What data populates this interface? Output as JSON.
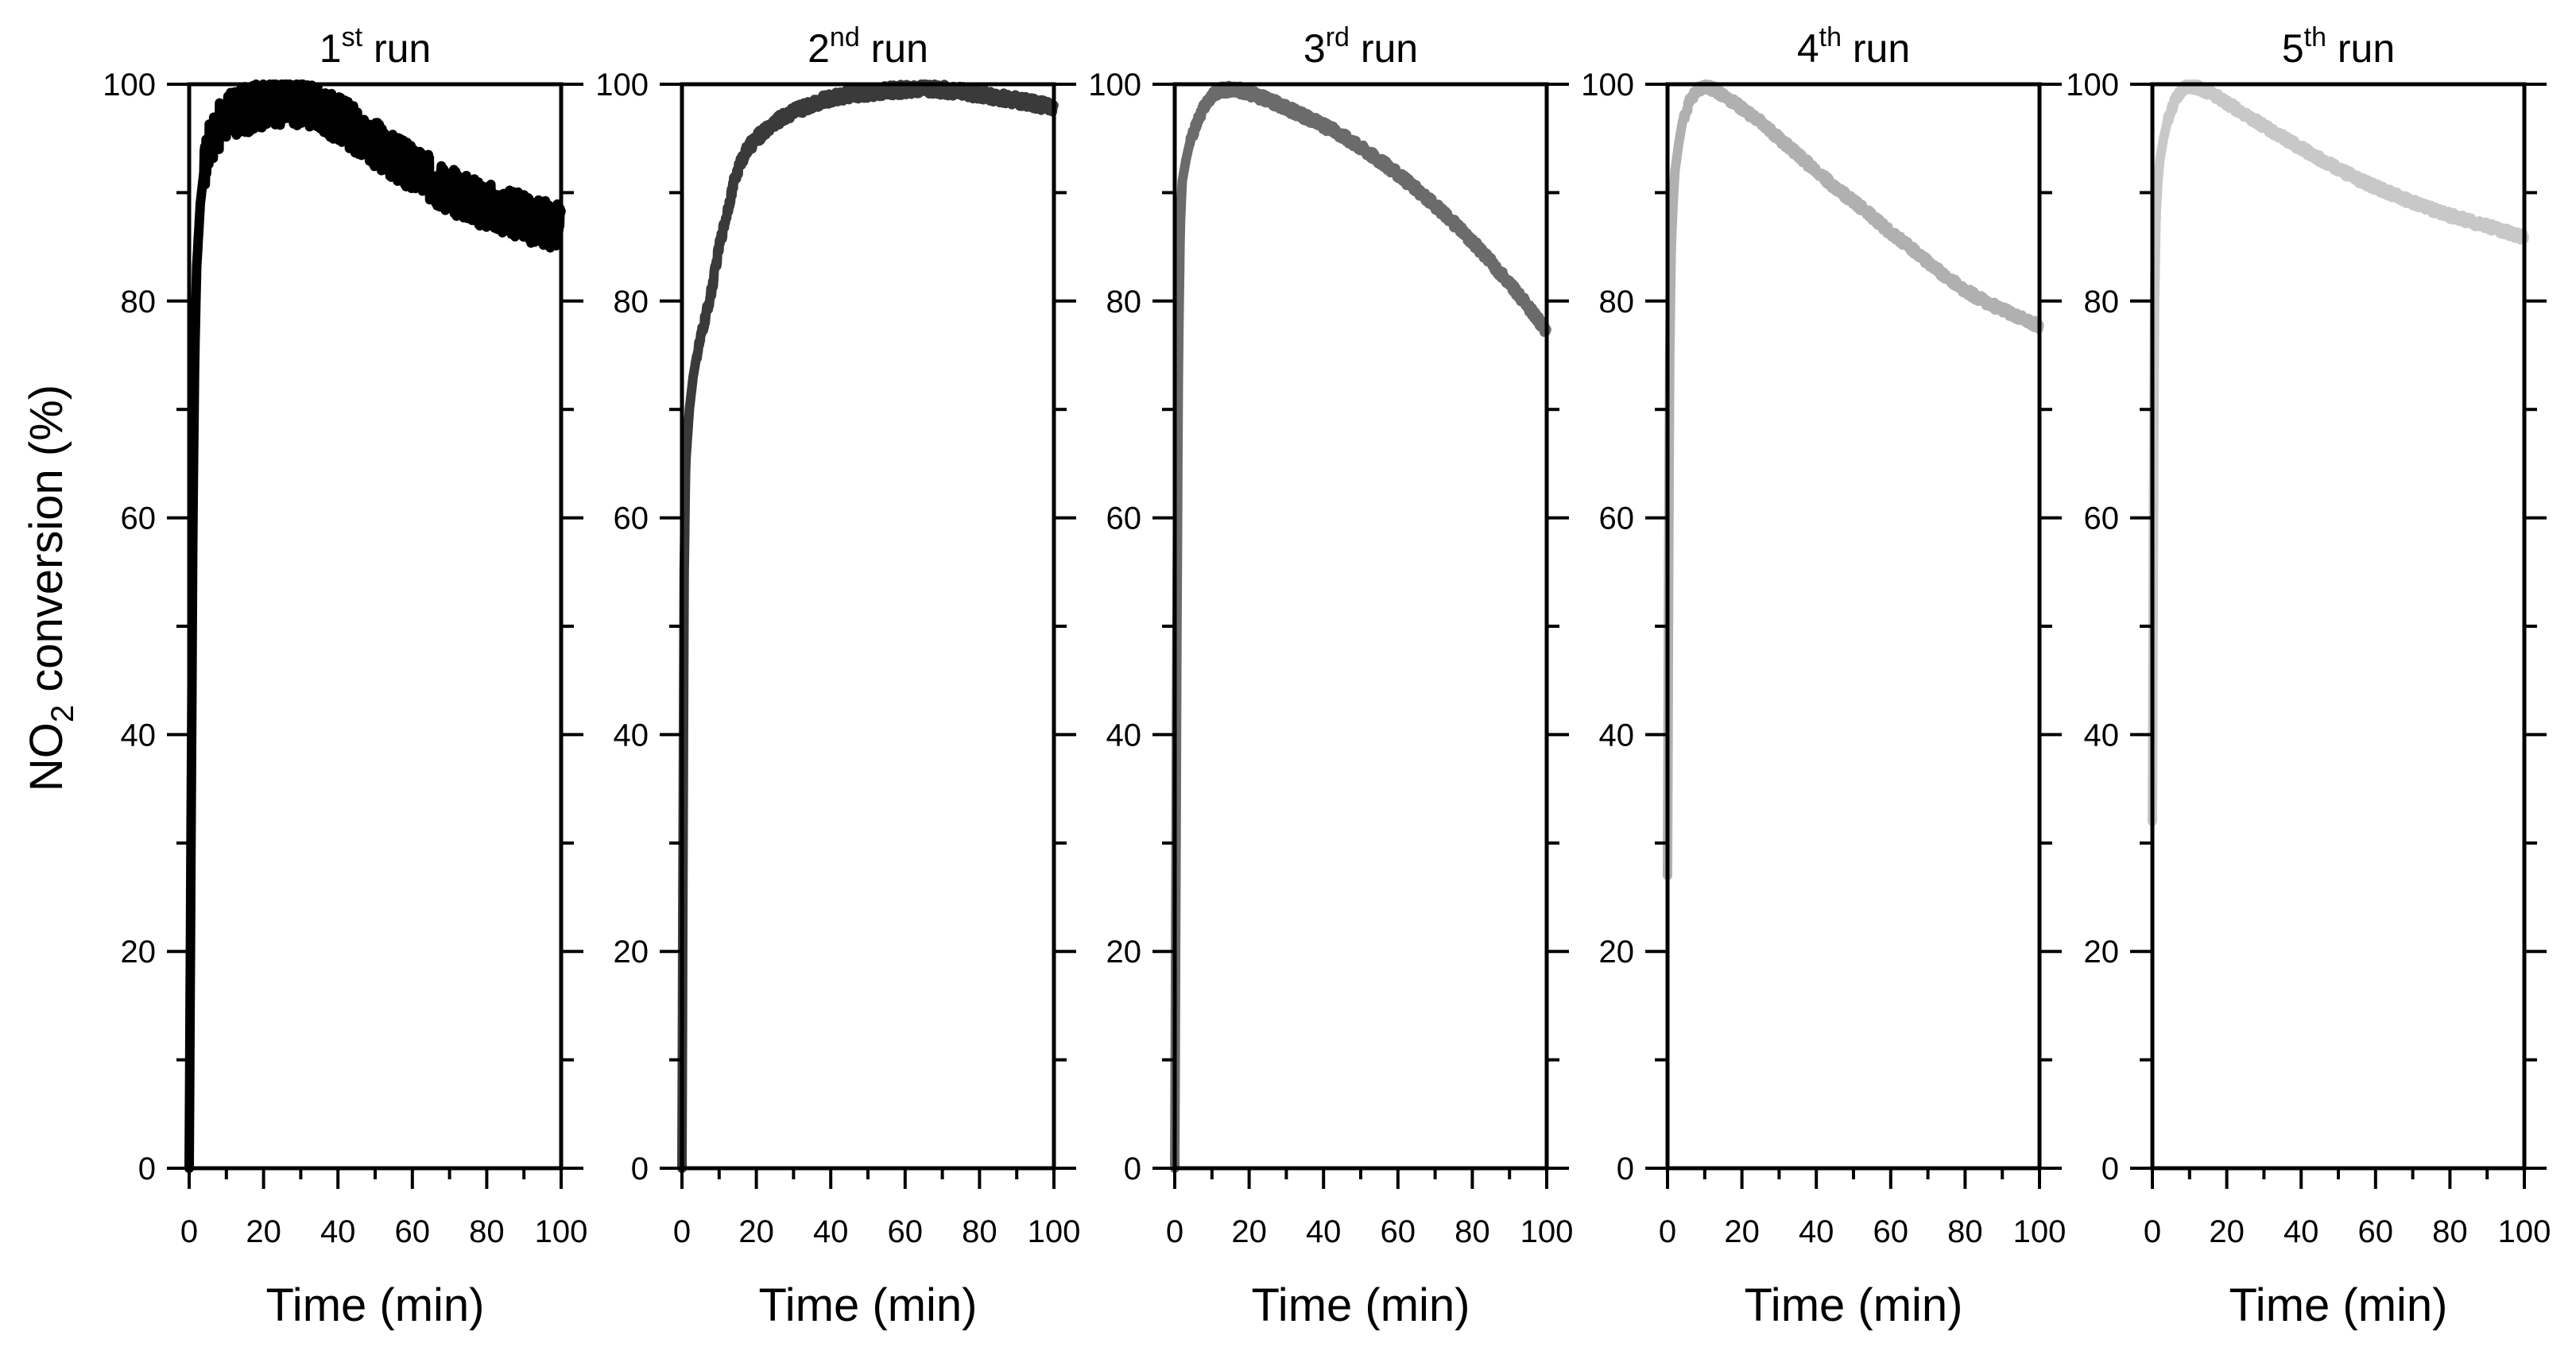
{
  "chart_data": {
    "type": "line",
    "ylabel": {
      "main": "NO",
      "sub": "2",
      "rest": " conversion (%)"
    },
    "ylim": [
      0,
      100
    ],
    "yticks": [
      0,
      20,
      40,
      60,
      80,
      100
    ],
    "xticks": [
      0,
      20,
      40,
      60,
      80,
      100
    ],
    "xlim": [
      0,
      100
    ],
    "panels": [
      {
        "title": {
          "num": "1",
          "sup": "st",
          "rest": " run"
        },
        "xlabel": "Time (min)",
        "color": "#000000",
        "noise": 2.2,
        "series": {
          "name": "1st run",
          "x": [
            0,
            0.5,
            1,
            1.5,
            2,
            3,
            4,
            5,
            6,
            8,
            10,
            14,
            18,
            22,
            26,
            30,
            34,
            38,
            42,
            46,
            50,
            55,
            60,
            65,
            70,
            75,
            80,
            85,
            90,
            95,
            100
          ],
          "y": [
            0,
            30,
            60,
            75,
            83,
            89,
            92,
            94,
            95,
            96,
            97,
            97.5,
            98,
            98.3,
            98.5,
            98.3,
            98,
            97.3,
            96.5,
            95.5,
            94.5,
            93.3,
            92.2,
            91.2,
            90.3,
            89.5,
            88.8,
            88.2,
            87.7,
            87.2,
            86.8
          ]
        }
      },
      {
        "title": {
          "num": "2",
          "sup": "nd",
          "rest": " run"
        },
        "xlabel": "Time (min)",
        "color": "#3a3a3a",
        "noise": 0.5,
        "series": {
          "name": "2nd run",
          "x": [
            0,
            0.3,
            0.6,
            1,
            2,
            3,
            4,
            6,
            8,
            10,
            12,
            14,
            16,
            18,
            20,
            25,
            30,
            35,
            40,
            45,
            50,
            55,
            60,
            65,
            70,
            75,
            80,
            85,
            90,
            95,
            100
          ],
          "y": [
            0,
            30,
            55,
            65,
            70,
            73,
            75,
            78,
            81,
            85,
            88,
            91,
            93,
            94.2,
            95,
            96.5,
            97.5,
            98.2,
            98.7,
            99,
            99.2,
            99.4,
            99.5,
            99.6,
            99.5,
            99.3,
            99.1,
            98.8,
            98.5,
            98.2,
            97.8
          ]
        }
      },
      {
        "title": {
          "num": "3",
          "sup": "rd",
          "rest": " run"
        },
        "xlabel": "Time (min)",
        "color": "#6b6b6b",
        "noise": 0.4,
        "series": {
          "name": "3rd run",
          "x": [
            0,
            0.3,
            0.6,
            1,
            1.5,
            2,
            3,
            4,
            6,
            8,
            10,
            12,
            14,
            16,
            18,
            20,
            25,
            30,
            35,
            40,
            45,
            50,
            55,
            60,
            65,
            70,
            75,
            80,
            85,
            90,
            95,
            100
          ],
          "y": [
            0,
            25,
            50,
            75,
            87,
            91,
            93,
            94.5,
            96.5,
            98,
            99,
            99.4,
            99.5,
            99.5,
            99.4,
            99.2,
            98.6,
            97.8,
            97,
            96.2,
            95.3,
            94.2,
            93,
            91.7,
            90.3,
            88.8,
            87.2,
            85.5,
            83.6,
            81.6,
            79.5,
            77.2
          ]
        }
      },
      {
        "title": {
          "num": "4",
          "sup": "th",
          "rest": " run"
        },
        "xlabel": "Time (min)",
        "color": "#b0b0b0",
        "noise": 0.35,
        "series": {
          "name": "4th run",
          "x": [
            0,
            0.3,
            0.6,
            1,
            1.5,
            2,
            3,
            4,
            6,
            8,
            10,
            12,
            15,
            20,
            25,
            30,
            35,
            40,
            45,
            50,
            55,
            60,
            65,
            70,
            75,
            80,
            85,
            90,
            95,
            100
          ],
          "y": [
            27,
            55,
            75,
            85,
            89,
            92,
            94.5,
            96.5,
            98.5,
            99.4,
            99.8,
            99.6,
            99,
            97.8,
            96.5,
            95,
            93.5,
            92,
            90.5,
            89.2,
            87.8,
            86.3,
            85,
            83.6,
            82.2,
            81,
            80,
            79.2,
            78.4,
            77.7
          ]
        }
      },
      {
        "title": {
          "num": "5",
          "sup": "th",
          "rest": " run"
        },
        "xlabel": "Time (min)",
        "color": "#c8c8c8",
        "noise": 0.35,
        "series": {
          "name": "5th run",
          "x": [
            0,
            0.3,
            0.6,
            1,
            1.5,
            2,
            3,
            4,
            6,
            8,
            10,
            12,
            15,
            20,
            25,
            30,
            35,
            40,
            45,
            50,
            55,
            60,
            65,
            70,
            75,
            80,
            85,
            90,
            95,
            100
          ],
          "y": [
            32,
            60,
            80,
            88,
            91,
            93,
            95,
            96.5,
            98.5,
            99.5,
            99.8,
            99.7,
            99.3,
            98.3,
            97.2,
            96.1,
            95.1,
            94.1,
            93.1,
            92.2,
            91.3,
            90.5,
            89.8,
            89.1,
            88.5,
            87.9,
            87.4,
            86.9,
            86.4,
            85.9
          ]
        }
      }
    ]
  }
}
